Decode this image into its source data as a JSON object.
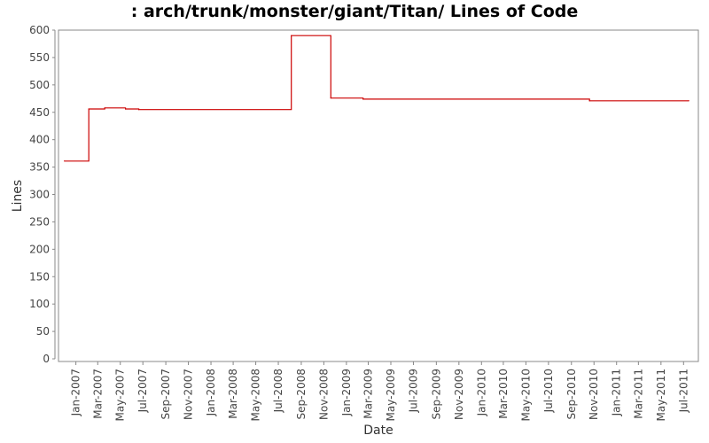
{
  "chart_data": {
    "type": "line",
    "step": true,
    "title": ": arch/trunk/monster/giant/Titan/ Lines of Code",
    "xlabel": "Date",
    "ylabel": "Lines",
    "ylim": [
      0,
      600
    ],
    "xlim": [
      "2006-11-15",
      "2011-08-10"
    ],
    "y_ticks": [
      0,
      50,
      100,
      150,
      200,
      250,
      300,
      350,
      400,
      450,
      500,
      550,
      600
    ],
    "x_ticks": [
      {
        "date": "2007-01-01",
        "label": "Jan-2007"
      },
      {
        "date": "2007-03-01",
        "label": "Mar-2007"
      },
      {
        "date": "2007-05-01",
        "label": "May-2007"
      },
      {
        "date": "2007-07-01",
        "label": "Jul-2007"
      },
      {
        "date": "2007-09-01",
        "label": "Sep-2007"
      },
      {
        "date": "2007-11-01",
        "label": "Nov-2007"
      },
      {
        "date": "2008-01-01",
        "label": "Jan-2008"
      },
      {
        "date": "2008-03-01",
        "label": "Mar-2008"
      },
      {
        "date": "2008-05-01",
        "label": "May-2008"
      },
      {
        "date": "2008-07-01",
        "label": "Jul-2008"
      },
      {
        "date": "2008-09-01",
        "label": "Sep-2008"
      },
      {
        "date": "2008-11-01",
        "label": "Nov-2008"
      },
      {
        "date": "2009-01-01",
        "label": "Jan-2009"
      },
      {
        "date": "2009-03-01",
        "label": "Mar-2009"
      },
      {
        "date": "2009-05-01",
        "label": "May-2009"
      },
      {
        "date": "2009-07-01",
        "label": "Jul-2009"
      },
      {
        "date": "2009-09-01",
        "label": "Sep-2009"
      },
      {
        "date": "2009-11-01",
        "label": "Nov-2009"
      },
      {
        "date": "2010-01-01",
        "label": "Jan-2010"
      },
      {
        "date": "2010-03-01",
        "label": "Mar-2010"
      },
      {
        "date": "2010-05-01",
        "label": "May-2010"
      },
      {
        "date": "2010-07-01",
        "label": "Jul-2010"
      },
      {
        "date": "2010-09-01",
        "label": "Sep-2010"
      },
      {
        "date": "2010-11-01",
        "label": "Nov-2010"
      },
      {
        "date": "2011-01-01",
        "label": "Jan-2011"
      },
      {
        "date": "2011-03-01",
        "label": "Mar-2011"
      },
      {
        "date": "2011-05-01",
        "label": "May-2011"
      },
      {
        "date": "2011-07-01",
        "label": "Jul-2011"
      }
    ],
    "series": [
      {
        "color": "#cc0000",
        "points": [
          {
            "x": "2006-12-01",
            "y": 361
          },
          {
            "x": "2007-02-05",
            "y": 456
          },
          {
            "x": "2007-03-20",
            "y": 458
          },
          {
            "x": "2007-05-15",
            "y": 456
          },
          {
            "x": "2007-06-20",
            "y": 455
          },
          {
            "x": "2008-08-05",
            "y": 590
          },
          {
            "x": "2008-11-20",
            "y": 476
          },
          {
            "x": "2009-02-15",
            "y": 474
          },
          {
            "x": "2010-10-20",
            "y": 471
          },
          {
            "x": "2011-07-15",
            "y": 471
          }
        ]
      }
    ],
    "grid": false
  }
}
